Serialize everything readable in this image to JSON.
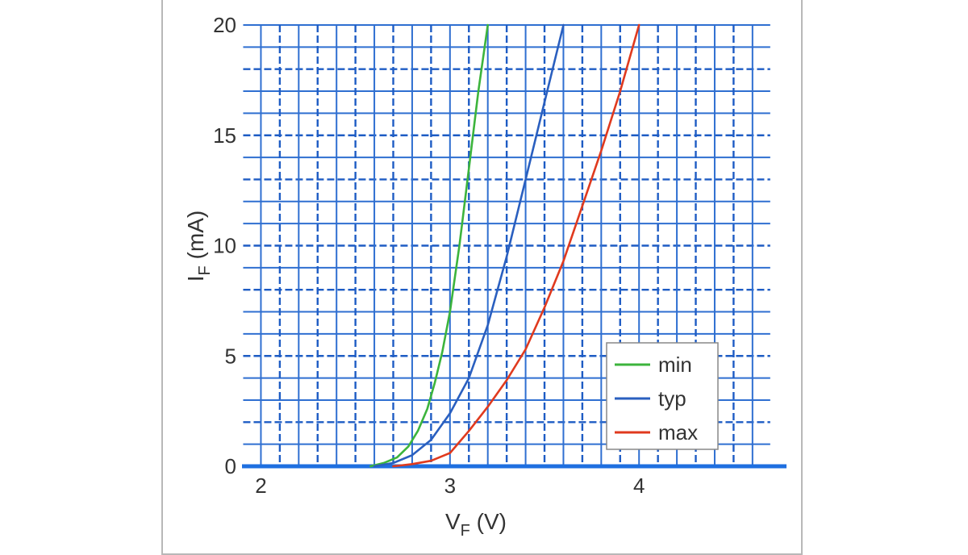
{
  "chart_data": {
    "type": "line",
    "title": "",
    "xlabel": {
      "main": "V",
      "sub": "F",
      "unit": " (V)"
    },
    "ylabel": {
      "main": "I",
      "sub": "F",
      "unit": " (mA)"
    },
    "xlim": [
      1.9,
      4.75
    ],
    "ylim": [
      0,
      20
    ],
    "x_ticks": [
      2,
      3,
      4
    ],
    "x_tick_labels": [
      "2",
      "3",
      "4"
    ],
    "y_ticks": [
      0,
      5,
      10,
      15,
      20
    ],
    "y_tick_labels": [
      "0",
      "5",
      "10",
      "15",
      "20"
    ],
    "x_solid_grid": [
      2,
      2.2,
      2.4,
      2.6,
      2.8,
      3,
      3.2,
      3.4,
      3.6,
      3.8,
      4,
      4.2,
      4.4,
      4.6
    ],
    "x_dashed_grid": [
      2.1,
      2.3,
      2.5,
      2.7,
      2.9,
      3.1,
      3.3,
      3.5,
      3.7,
      3.9,
      4.1,
      4.3,
      4.5
    ],
    "y_solid_grid": [
      1,
      3,
      4,
      6,
      7,
      9,
      11,
      12,
      14,
      16,
      17,
      19,
      20
    ],
    "y_dashed_grid": [
      2,
      5,
      8,
      10,
      13,
      15,
      18
    ],
    "grid": true,
    "legend_position": "bottom-right",
    "series": [
      {
        "name": "min",
        "color": "#3cb43c",
        "x": [
          2.58,
          2.65,
          2.72,
          2.78,
          2.83,
          2.88,
          2.92,
          2.96,
          3.0,
          3.05,
          3.1,
          3.15,
          3.2
        ],
        "y": [
          0,
          0.15,
          0.4,
          0.9,
          1.6,
          2.6,
          3.8,
          5.2,
          7.0,
          10.0,
          13.5,
          17.0,
          20.0
        ]
      },
      {
        "name": "typ",
        "color": "#2a5fbf",
        "x": [
          2.6,
          2.7,
          2.8,
          2.9,
          3.0,
          3.1,
          3.2,
          3.3,
          3.4,
          3.5,
          3.6
        ],
        "y": [
          0,
          0.15,
          0.5,
          1.2,
          2.4,
          4.0,
          6.4,
          9.5,
          13.0,
          16.5,
          20.0
        ]
      },
      {
        "name": "max",
        "color": "#e03a1e",
        "x": [
          2.7,
          2.8,
          2.9,
          3.0,
          3.1,
          3.2,
          3.3,
          3.4,
          3.5,
          3.6,
          3.7,
          3.8,
          3.9,
          4.0
        ],
        "y": [
          0,
          0.1,
          0.25,
          0.6,
          1.6,
          2.7,
          3.9,
          5.3,
          7.2,
          9.3,
          11.8,
          14.3,
          17.0,
          20.0
        ]
      }
    ]
  }
}
